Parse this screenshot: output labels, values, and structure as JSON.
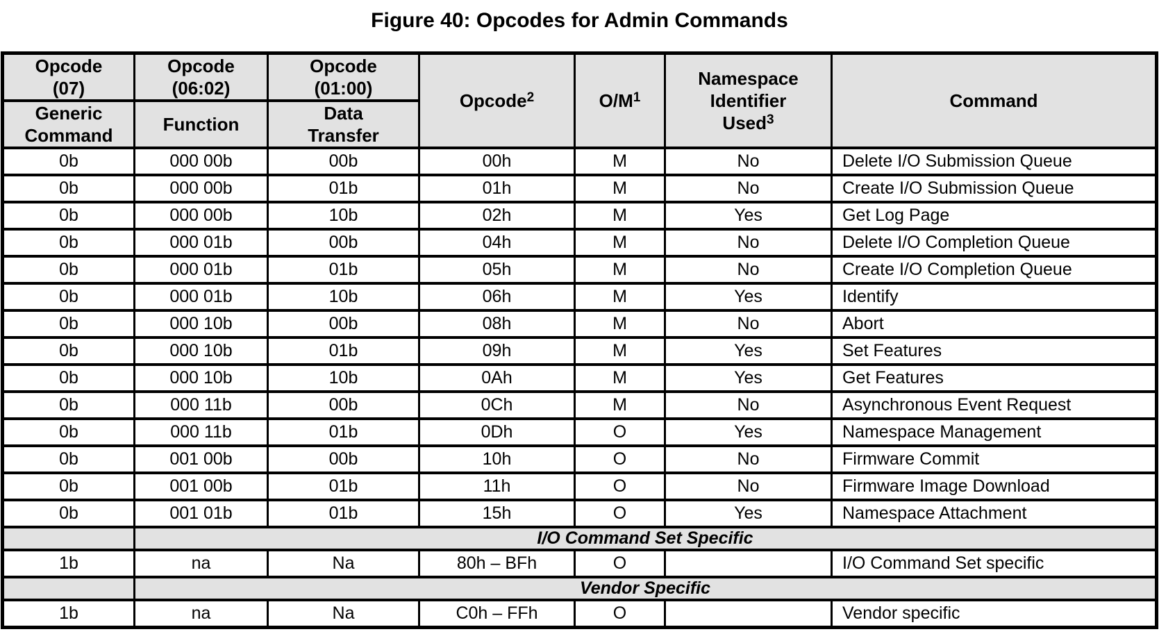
{
  "title": "Figure 40: Opcodes for Admin Commands",
  "colors": {
    "header_bg": "#e2e2e2",
    "section_bg": "#e2e2e2",
    "border": "#000000",
    "text": "#000000",
    "page_bg": "#ffffff"
  },
  "table": {
    "header": {
      "col1_top": "Opcode\n(07)",
      "col1_bottom": "Generic\nCommand",
      "col2_top": "Opcode\n(06:02)",
      "col2_bottom": "Function",
      "col3_top": "Opcode\n(01:00)",
      "col3_bottom": "Data\nTransfer",
      "col4": "Opcode",
      "col4_sup": "2",
      "col5": "O/M",
      "col5_sup": "1",
      "col6_top": "Namespace\nIdentifier",
      "col6_bottom": "Used",
      "col6_sup": "3",
      "col7": "Command"
    },
    "rows": [
      {
        "cells": [
          "0b",
          "000 00b",
          "00b",
          "00h",
          "M",
          "No",
          "Delete I/O Submission Queue"
        ]
      },
      {
        "cells": [
          "0b",
          "000 00b",
          "01b",
          "01h",
          "M",
          "No",
          "Create I/O Submission Queue"
        ]
      },
      {
        "cells": [
          "0b",
          "000 00b",
          "10b",
          "02h",
          "M",
          "Yes",
          "Get Log Page"
        ]
      },
      {
        "cells": [
          "0b",
          "000 01b",
          "00b",
          "04h",
          "M",
          "No",
          "Delete I/O Completion Queue"
        ]
      },
      {
        "cells": [
          "0b",
          "000 01b",
          "01b",
          "05h",
          "M",
          "No",
          "Create I/O Completion Queue"
        ]
      },
      {
        "cells": [
          "0b",
          "000 01b",
          "10b",
          "06h",
          "M",
          "Yes",
          "Identify"
        ]
      },
      {
        "cells": [
          "0b",
          "000 10b",
          "00b",
          "08h",
          "M",
          "No",
          "Abort"
        ]
      },
      {
        "cells": [
          "0b",
          "000 10b",
          "01b",
          "09h",
          "M",
          "Yes",
          "Set Features"
        ]
      },
      {
        "cells": [
          "0b",
          "000 10b",
          "10b",
          "0Ah",
          "M",
          "Yes",
          "Get Features"
        ]
      },
      {
        "cells": [
          "0b",
          "000 11b",
          "00b",
          "0Ch",
          "M",
          "No",
          "Asynchronous Event Request"
        ]
      },
      {
        "cells": [
          "0b",
          "000 11b",
          "01b",
          "0Dh",
          "O",
          "Yes",
          "Namespace Management"
        ]
      },
      {
        "cells": [
          "0b",
          "001 00b",
          "00b",
          "10h",
          "O",
          "No",
          "Firmware Commit"
        ]
      },
      {
        "cells": [
          "0b",
          "001 00b",
          "01b",
          "11h",
          "O",
          "No",
          "Firmware Image Download"
        ]
      },
      {
        "cells": [
          "0b",
          "001 01b",
          "01b",
          "15h",
          "O",
          "Yes",
          "Namespace Attachment"
        ]
      },
      {
        "section": "I/O Command Set Specific"
      },
      {
        "cells": [
          "1b",
          "na",
          "Na",
          "80h – BFh",
          "O",
          "",
          "I/O Command Set specific"
        ]
      },
      {
        "section": "Vendor Specific"
      },
      {
        "cells": [
          "1b",
          "na",
          "Na",
          "C0h – FFh",
          "O",
          "",
          "Vendor specific"
        ]
      }
    ]
  }
}
